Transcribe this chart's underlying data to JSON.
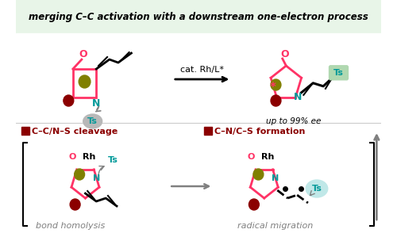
{
  "bg_top": "#e8f5e8",
  "bg_bottom": "#ffffff",
  "title": "merging C–C activation with a downstream one-electron process",
  "title_color": "#000000",
  "arrow_label": "cat. Rh/L*",
  "ee_label": "up to 99% ee",
  "label1": "C–C/N–S cleavage",
  "label2": "C–N/C–S formation",
  "label3": "bond homolysis",
  "label4": "radical migration",
  "pink": "#FF3366",
  "teal": "#009999",
  "olive": "#808000",
  "darkred": "#8B0000",
  "gray": "#888888"
}
